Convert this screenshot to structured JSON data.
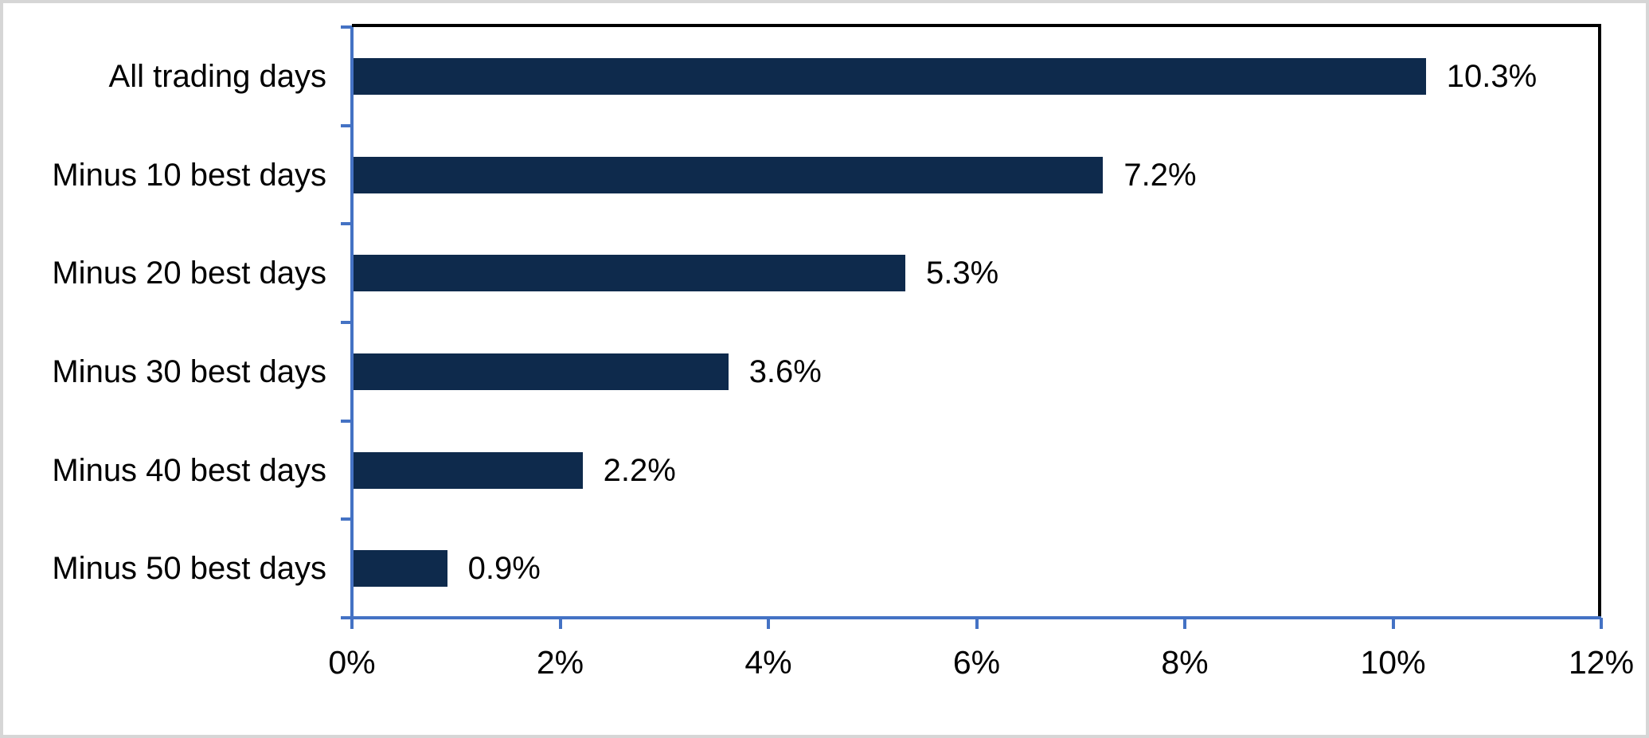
{
  "chart_data": {
    "type": "bar",
    "orientation": "horizontal",
    "title": "",
    "xlabel": "",
    "ylabel": "",
    "grid": false,
    "legend": null,
    "categories": [
      "All trading days",
      "Minus 10 best days",
      "Minus 20 best days",
      "Minus 30 best days",
      "Minus 40 best days",
      "Minus 50 best days"
    ],
    "values": [
      10.3,
      7.2,
      5.3,
      3.6,
      2.2,
      0.9
    ],
    "data_labels": [
      "10.3%",
      "7.2%",
      "5.3%",
      "3.6%",
      "2.2%",
      "0.9%"
    ],
    "x_axis": {
      "min": 0,
      "max": 12,
      "step": 2,
      "tick_labels": [
        "0%",
        "2%",
        "4%",
        "6%",
        "8%",
        "10%",
        "12%"
      ]
    },
    "colors": {
      "bar": "#0e2a4c",
      "axis": "#4472c4",
      "plot_border": "#000000",
      "text": "#000000",
      "figure_border": "#d6d6d6",
      "background": "#ffffff"
    }
  }
}
